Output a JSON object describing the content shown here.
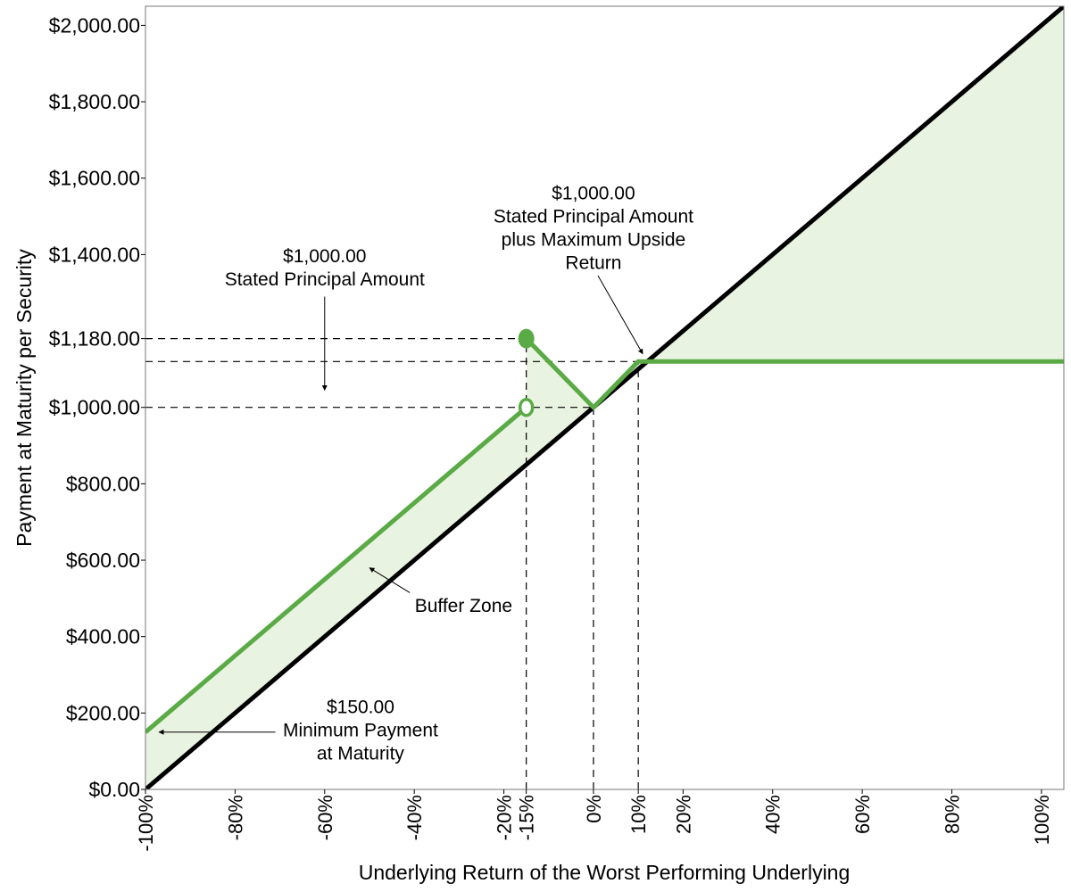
{
  "chart_data": {
    "type": "line",
    "xlabel": "Underlying Return of the Worst Performing Underlying",
    "ylabel": "Payment at Maturity per Security",
    "xlim": [
      -100,
      105
    ],
    "ylim": [
      0,
      2050
    ],
    "x_ticks": [
      {
        "value": -100,
        "label": "-100%"
      },
      {
        "value": -80,
        "label": "-80%"
      },
      {
        "value": -60,
        "label": "-60%"
      },
      {
        "value": -40,
        "label": "-40%"
      },
      {
        "value": -20,
        "label": "-20%"
      },
      {
        "value": -15,
        "label": "-15%"
      },
      {
        "value": 0,
        "label": "0%"
      },
      {
        "value": 10,
        "label": "10%"
      },
      {
        "value": 20,
        "label": "20%"
      },
      {
        "value": 40,
        "label": "40%"
      },
      {
        "value": 60,
        "label": "60%"
      },
      {
        "value": 80,
        "label": "80%"
      },
      {
        "value": 100,
        "label": "100%"
      }
    ],
    "y_ticks": [
      {
        "value": 0,
        "label": "$0.00"
      },
      {
        "value": 200,
        "label": "$200.00"
      },
      {
        "value": 400,
        "label": "$400.00"
      },
      {
        "value": 600,
        "label": "$600.00"
      },
      {
        "value": 800,
        "label": "$800.00"
      },
      {
        "value": 1000,
        "label": "$1,000.00"
      },
      {
        "value": 1180,
        "label": "$1,180.00"
      },
      {
        "value": 1400,
        "label": "$1,400.00"
      },
      {
        "value": 1600,
        "label": "$1,600.00"
      },
      {
        "value": 1800,
        "label": "$1,800.00"
      },
      {
        "value": 2000,
        "label": "$2,000.00"
      }
    ],
    "series": [
      {
        "color": "#000000",
        "x": [
          -100,
          105
        ],
        "y": [
          0,
          2050
        ]
      },
      {
        "color": "#5aaa46",
        "segments": [
          {
            "x": [
              -100,
              -15
            ],
            "y": [
              150,
              1000
            ]
          },
          {
            "x": [
              -15,
              0,
              10,
              105
            ],
            "y": [
              1180,
              1000,
              1120,
              1120
            ]
          }
        ]
      }
    ],
    "buffer_fill_color": "#e9f3e1",
    "markers": [
      {
        "x": -15,
        "y": 1180,
        "style": "filled"
      },
      {
        "x": -15,
        "y": 1000,
        "style": "open"
      }
    ],
    "reference_lines": [
      {
        "y": 1180,
        "x_to": -15
      },
      {
        "y": 1120,
        "x_to": 10
      },
      {
        "y": 1000,
        "x_to": 0
      },
      {
        "x": -15,
        "y_to": 1180
      },
      {
        "x": 0,
        "y_to": 1000
      },
      {
        "x": 10,
        "y_to": 1120
      }
    ],
    "annotations": [
      {
        "lines": [
          "$1,000.00",
          "Stated Principal Amount"
        ],
        "text_at": {
          "x": -60,
          "y": 1380
        },
        "arrow_from": {
          "x": -60,
          "y": 1290
        },
        "arrow_to": {
          "x": -60,
          "y": 1045
        }
      },
      {
        "lines": [
          "$1,000.00",
          "Stated Principal Amount",
          "plus Maximum Upside",
          "Return"
        ],
        "text_at": {
          "x": 0,
          "y": 1545
        },
        "arrow_from": {
          "x": 1,
          "y": 1345
        },
        "arrow_to": {
          "x": 11,
          "y": 1140
        }
      },
      {
        "lines": [
          "Buffer Zone"
        ],
        "text_at": {
          "x": -29,
          "y": 465
        },
        "arrow_from": {
          "x": -41,
          "y": 515
        },
        "arrow_to": {
          "x": -50,
          "y": 580
        }
      },
      {
        "lines": [
          "$150.00",
          "Minimum Payment",
          "at Maturity"
        ],
        "text_at": {
          "x": -52,
          "y": 200
        },
        "arrow_from": {
          "x": -71,
          "y": 150
        },
        "arrow_to": {
          "x": -97,
          "y": 150
        }
      }
    ]
  }
}
